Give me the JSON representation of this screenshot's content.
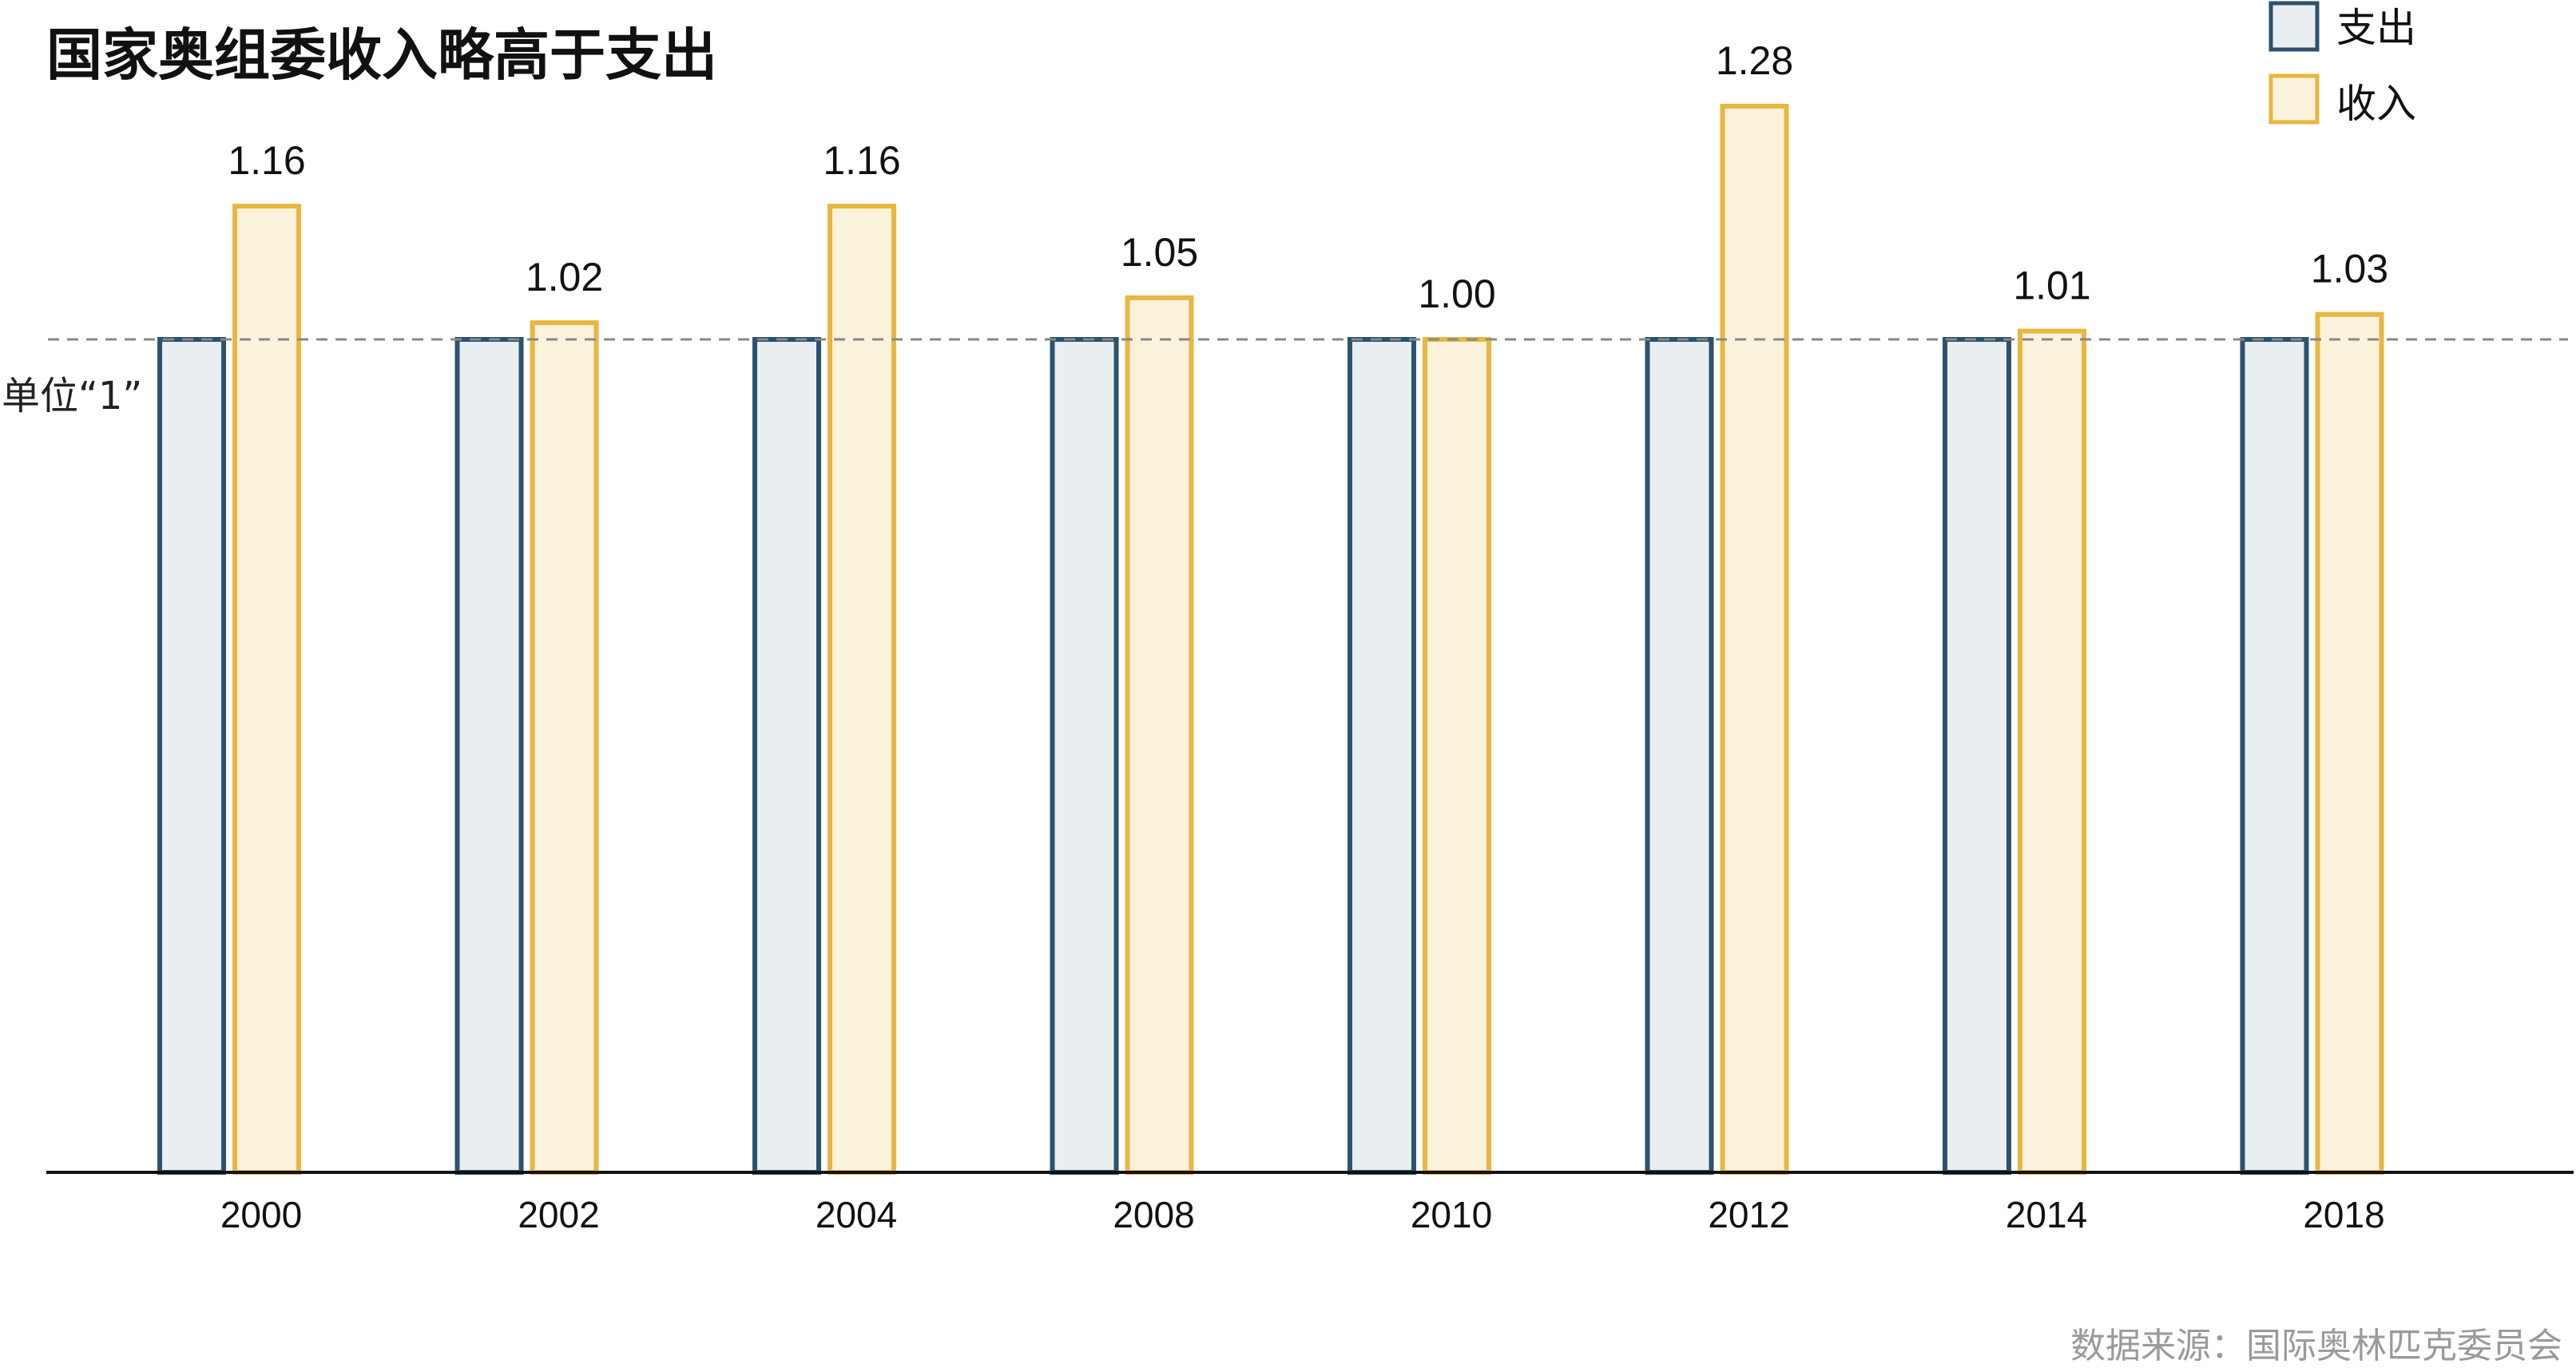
{
  "chart_data": {
    "type": "bar",
    "title": "国家奥组委收入略高于支出",
    "categories": [
      "2000",
      "2002",
      "2004",
      "2008",
      "2010",
      "2012",
      "2014",
      "2018"
    ],
    "series": [
      {
        "name": "支出",
        "values": [
          1,
          1,
          1,
          1,
          1,
          1,
          1,
          1
        ],
        "color": "#2c5270",
        "fill": "#e9eef1"
      },
      {
        "name": "收入",
        "values": [
          1.16,
          1.02,
          1.16,
          1.05,
          1.0,
          1.28,
          1.01,
          1.03
        ],
        "color": "#e8b740",
        "fill": "#fbf2dc"
      }
    ],
    "data_labels": [
      "1.16",
      "1.02",
      "1.16",
      "1.05",
      "1.00",
      "1.28",
      "1.01",
      "1.03"
    ],
    "reference_line": {
      "value": 1,
      "label": "单位“1”"
    },
    "ylim": [
      0,
      1.35
    ],
    "grid": false,
    "legend_position": "top-right",
    "source": "数据来源：国际奥林匹克委员会"
  }
}
